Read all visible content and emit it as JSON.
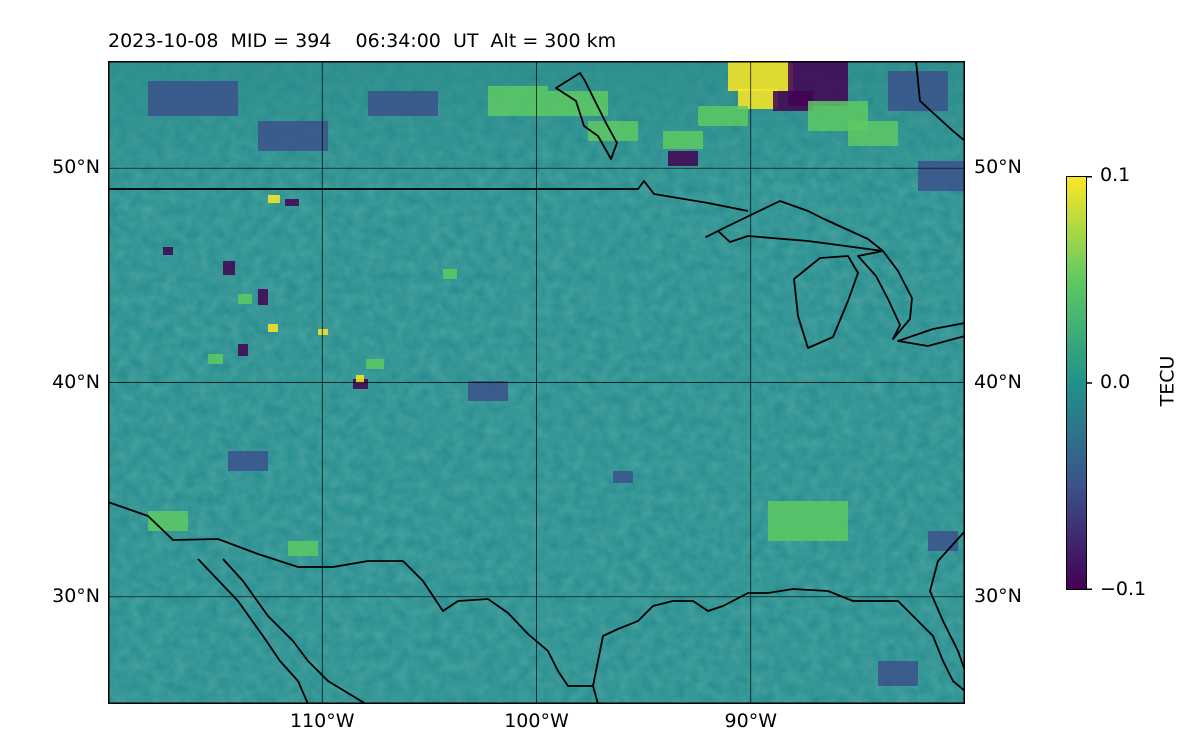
{
  "header": {
    "title": "2023-10-08  MID = 394    06:34:00  UT  Alt = 300 km"
  },
  "map": {
    "lon_range": [
      -120,
      -80
    ],
    "lat_range": [
      25,
      55
    ],
    "lat_ticks": [
      {
        "value": 30,
        "label": "30°N"
      },
      {
        "value": 40,
        "label": "40°N"
      },
      {
        "value": 50,
        "label": "50°N"
      }
    ],
    "lon_ticks": [
      {
        "value": -110,
        "label": "110°W"
      },
      {
        "value": -100,
        "label": "100°W"
      },
      {
        "value": -90,
        "label": "90°W"
      }
    ],
    "grid": true,
    "field_colors": {
      "low": "#440154",
      "mid_low": "#3b528b",
      "mid": "#21918c",
      "mid_high": "#5ec962",
      "high": "#fde725"
    }
  },
  "colorbar": {
    "label": "TECU",
    "range": [
      -0.1,
      0.1
    ],
    "ticks": [
      {
        "value": 0.1,
        "label": "0.1"
      },
      {
        "value": 0.0,
        "label": "0.0"
      },
      {
        "value": -0.1,
        "label": "−0.1"
      }
    ]
  }
}
